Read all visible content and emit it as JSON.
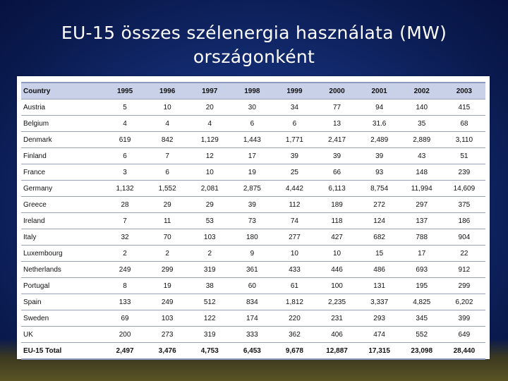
{
  "slide": {
    "title_line1": "EU-15 összes szélenergia használata (MW)",
    "title_line2": "országonként"
  },
  "table": {
    "header": [
      "Country",
      "1995",
      "1996",
      "1997",
      "1998",
      "1999",
      "2000",
      "2001",
      "2002",
      "2003"
    ],
    "rows": [
      [
        "Austria",
        "5",
        "10",
        "20",
        "30",
        "34",
        "77",
        "94",
        "140",
        "415"
      ],
      [
        "Belgium",
        "4",
        "4",
        "4",
        "6",
        "6",
        "13",
        "31.6",
        "35",
        "68"
      ],
      [
        "Denmark",
        "619",
        "842",
        "1,129",
        "1,443",
        "1,771",
        "2,417",
        "2,489",
        "2,889",
        "3,110"
      ],
      [
        "Finland",
        "6",
        "7",
        "12",
        "17",
        "39",
        "39",
        "39",
        "43",
        "51"
      ],
      [
        "France",
        "3",
        "6",
        "10",
        "19",
        "25",
        "66",
        "93",
        "148",
        "239"
      ],
      [
        "Germany",
        "1,132",
        "1,552",
        "2,081",
        "2,875",
        "4,442",
        "6,113",
        "8,754",
        "11,994",
        "14,609"
      ],
      [
        "Greece",
        "28",
        "29",
        "29",
        "39",
        "112",
        "189",
        "272",
        "297",
        "375"
      ],
      [
        "Ireland",
        "7",
        "11",
        "53",
        "73",
        "74",
        "118",
        "124",
        "137",
        "186"
      ],
      [
        "Italy",
        "32",
        "70",
        "103",
        "180",
        "277",
        "427",
        "682",
        "788",
        "904"
      ],
      [
        "Luxembourg",
        "2",
        "2",
        "2",
        "9",
        "10",
        "10",
        "15",
        "17",
        "22"
      ],
      [
        "Netherlands",
        "249",
        "299",
        "319",
        "361",
        "433",
        "446",
        "486",
        "693",
        "912"
      ],
      [
        "Portugal",
        "8",
        "19",
        "38",
        "60",
        "61",
        "100",
        "131",
        "195",
        "299"
      ],
      [
        "Spain",
        "133",
        "249",
        "512",
        "834",
        "1,812",
        "2,235",
        "3,337",
        "4,825",
        "6,202"
      ],
      [
        "Sweden",
        "69",
        "103",
        "122",
        "174",
        "220",
        "231",
        "293",
        "345",
        "399"
      ],
      [
        "UK",
        "200",
        "273",
        "319",
        "333",
        "362",
        "406",
        "474",
        "552",
        "649"
      ]
    ],
    "total": [
      "EU-15 Total",
      "2,497",
      "3,476",
      "4,753",
      "6,453",
      "9,678",
      "12,887",
      "17,315",
      "23,098",
      "28,440"
    ]
  }
}
